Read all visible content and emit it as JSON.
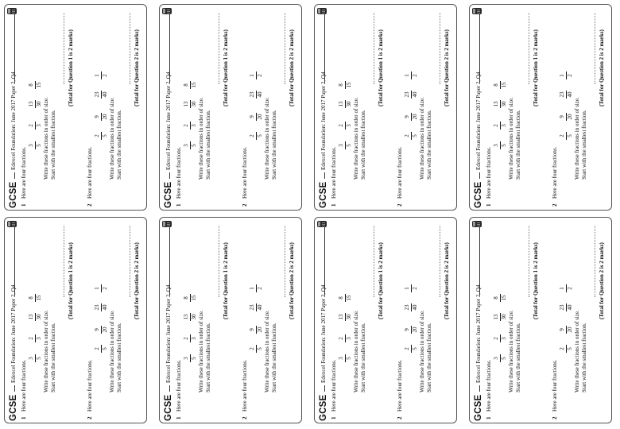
{
  "worksheet": {
    "header": {
      "logo": "GCSE",
      "title": "Edexcel Foundation: June 2017 Paper 2, Q4"
    },
    "question1": {
      "number": "1",
      "intro": "Here are four fractions.",
      "fractions": [
        {
          "num": "3",
          "den": "5"
        },
        {
          "num": "2",
          "den": "3"
        },
        {
          "num": "13",
          "den": "30"
        },
        {
          "num": "8",
          "den": "15"
        }
      ],
      "instruction_line1": "Write these fractions in order of size.",
      "instruction_line2": "Start with the smallest fraction.",
      "total": "(Total for Question 1 is 2 marks)"
    },
    "question2": {
      "number": "2",
      "intro": "Here are four fractions.",
      "fractions": [
        {
          "num": "2",
          "den": "5"
        },
        {
          "num": "9",
          "den": "20"
        },
        {
          "num": "23",
          "den": "40"
        },
        {
          "num": "1",
          "den": "2"
        }
      ],
      "instruction_line1": "Write these fractions in order of size.",
      "instruction_line2": "Start with the smallest fraction.",
      "total": "(Total for Question 2 is 2 marks)"
    }
  },
  "icons": {
    "calculator": "calculator-icon"
  }
}
